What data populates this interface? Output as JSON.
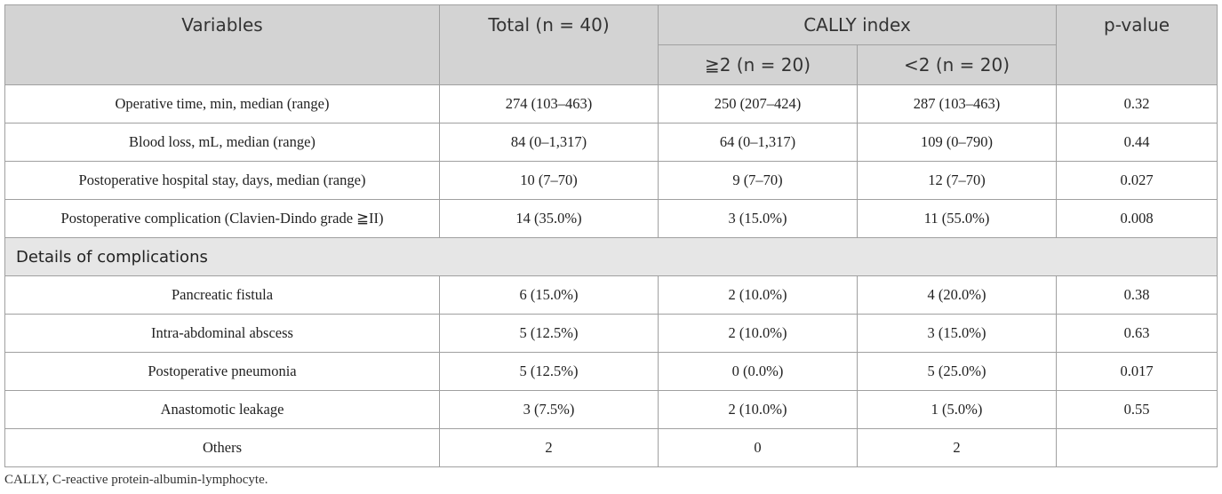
{
  "table": {
    "header": {
      "variables": "Variables",
      "total": "Total (n = 40)",
      "group": "CALLY index",
      "high": "≧2 (n = 20)",
      "low": "<2 (n = 20)",
      "p": "p-value"
    },
    "rows": [
      [
        "Operative time, min, median (range)",
        "274 (103–463)",
        "250 (207–424)",
        "287 (103–463)",
        "0.32"
      ],
      [
        "Blood loss, mL, median (range)",
        "84 (0–1,317)",
        "64 (0–1,317)",
        "109 (0–790)",
        "0.44"
      ],
      [
        "Postoperative hospital stay, days, median (range)",
        "10 (7–70)",
        "9 (7–70)",
        "12 (7–70)",
        "0.027"
      ],
      [
        "Postoperative complication (Clavien-Dindo grade ≧II)",
        "14 (35.0%)",
        "3 (15.0%)",
        "11 (55.0%)",
        "0.008"
      ]
    ],
    "section": "Details of complications",
    "detail_rows": [
      [
        "Pancreatic fistula",
        "6 (15.0%)",
        "2 (10.0%)",
        "4 (20.0%)",
        "0.38"
      ],
      [
        "Intra-abdominal abscess",
        "5 (12.5%)",
        "2 (10.0%)",
        "3 (15.0%)",
        "0.63"
      ],
      [
        "Postoperative pneumonia",
        "5 (12.5%)",
        "0 (0.0%)",
        "5 (25.0%)",
        "0.017"
      ],
      [
        "Anastomotic leakage",
        "3 (7.5%)",
        "2 (10.0%)",
        "1 (5.0%)",
        "0.55"
      ],
      [
        "Others",
        "2",
        "0",
        "2"
      ]
    ]
  },
  "footnote": "CALLY, C-reactive protein-albumin-lymphocyte."
}
